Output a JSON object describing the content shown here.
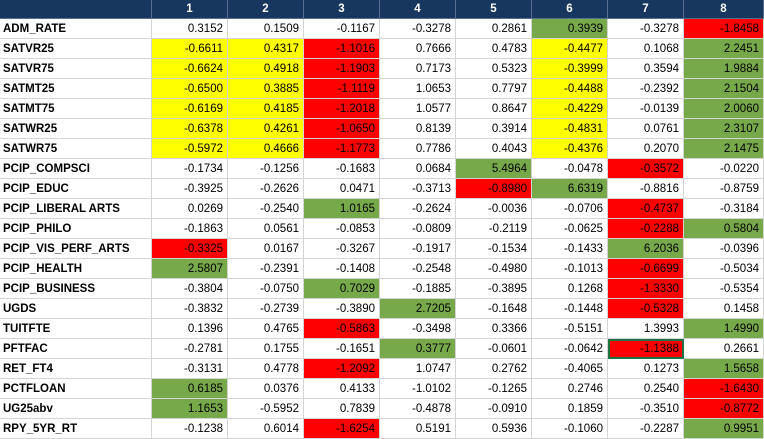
{
  "columns": [
    "",
    "1",
    "2",
    "3",
    "4",
    "5",
    "6",
    "7",
    "8"
  ],
  "colors": {
    "header": "#17375e",
    "yellow": "#ffff00",
    "red": "#ff0000",
    "green": "#77a94b"
  },
  "rows": [
    {
      "label": "ADM_RATE",
      "values": [
        "0.3152",
        "0.1509",
        "-0.1167",
        "-0.3278",
        "0.2861",
        "0.3939",
        "-0.3278",
        "-1.8458"
      ],
      "fills": [
        "",
        "",
        "",
        "",
        "",
        "green",
        "",
        "red"
      ]
    },
    {
      "label": "SATVR25",
      "values": [
        "-0.6611",
        "0.4317",
        "-1.1016",
        "0.7666",
        "0.4783",
        "-0.4477",
        "0.1068",
        "2.2451"
      ],
      "fills": [
        "yellow",
        "yellow",
        "red",
        "",
        "",
        "yellow",
        "",
        "green"
      ]
    },
    {
      "label": "SATVR75",
      "values": [
        "-0.6624",
        "0.4918",
        "-1.1903",
        "0.7173",
        "0.5323",
        "-0.3999",
        "0.3594",
        "1.9884"
      ],
      "fills": [
        "yellow",
        "yellow",
        "red",
        "",
        "",
        "yellow",
        "",
        "green"
      ]
    },
    {
      "label": "SATMT25",
      "values": [
        "-0.6500",
        "0.3885",
        "-1.1119",
        "1.0653",
        "0.7797",
        "-0.4488",
        "-0.2392",
        "2.1504"
      ],
      "fills": [
        "yellow",
        "yellow",
        "red",
        "",
        "",
        "yellow",
        "",
        "green"
      ]
    },
    {
      "label": "SATMT75",
      "values": [
        "-0.6169",
        "0.4185",
        "-1.2018",
        "1.0577",
        "0.8647",
        "-0.4229",
        "-0.0139",
        "2.0060"
      ],
      "fills": [
        "yellow",
        "yellow",
        "red",
        "",
        "",
        "yellow",
        "",
        "green"
      ]
    },
    {
      "label": "SATWR25",
      "values": [
        "-0.6378",
        "0.4261",
        "-1.0650",
        "0.8139",
        "0.3914",
        "-0.4831",
        "0.0761",
        "2.3107"
      ],
      "fills": [
        "yellow",
        "yellow",
        "red",
        "",
        "",
        "yellow",
        "",
        "green"
      ]
    },
    {
      "label": "SATWR75",
      "values": [
        "-0.5972",
        "0.4666",
        "-1.1773",
        "0.7786",
        "0.4043",
        "-0.4376",
        "0.2070",
        "2.1475"
      ],
      "fills": [
        "yellow",
        "yellow",
        "red",
        "",
        "",
        "yellow",
        "",
        "green"
      ]
    },
    {
      "label": "PCIP_COMPSCI",
      "values": [
        "-0.1734",
        "-0.1256",
        "-0.1683",
        "0.0684",
        "5.4964",
        "-0.0478",
        "-0.3572",
        "-0.0220"
      ],
      "fills": [
        "",
        "",
        "",
        "",
        "green",
        "",
        "red",
        ""
      ]
    },
    {
      "label": "PCIP_EDUC",
      "values": [
        "-0.3925",
        "-0.2626",
        "0.0471",
        "-0.3713",
        "-0.8980",
        "6.6319",
        "-0.8816",
        "-0.8759"
      ],
      "fills": [
        "",
        "",
        "",
        "",
        "red",
        "green",
        "",
        ""
      ]
    },
    {
      "label": "PCIP_LIBERAL ARTS",
      "values": [
        "0.0269",
        "-0.2540",
        "1.0165",
        "-0.2624",
        "-0.0036",
        "-0.0706",
        "-0.4737",
        "-0.3184"
      ],
      "fills": [
        "",
        "",
        "green",
        "",
        "",
        "",
        "red",
        ""
      ]
    },
    {
      "label": "PCIP_PHILO",
      "values": [
        "-0.1863",
        "0.0561",
        "-0.0853",
        "-0.0809",
        "-0.2119",
        "-0.0625",
        "-0.2288",
        "0.5804"
      ],
      "fills": [
        "",
        "",
        "",
        "",
        "",
        "",
        "red",
        "green"
      ]
    },
    {
      "label": "PCIP_VIS_PERF_ARTS",
      "values": [
        "-0.3325",
        "0.0167",
        "-0.3267",
        "-0.1917",
        "-0.1534",
        "-0.1433",
        "6.2036",
        "-0.0396"
      ],
      "fills": [
        "red",
        "",
        "",
        "",
        "",
        "",
        "green",
        ""
      ]
    },
    {
      "label": "PCIP_HEALTH",
      "values": [
        "2.5807",
        "-0.2391",
        "-0.1408",
        "-0.2548",
        "-0.4980",
        "-0.1013",
        "-0.6699",
        "-0.5034"
      ],
      "fills": [
        "green",
        "",
        "",
        "",
        "",
        "",
        "red",
        ""
      ]
    },
    {
      "label": "PCIP_BUSINESS",
      "values": [
        "-0.3804",
        "-0.0750",
        "0.7029",
        "-0.1885",
        "-0.3895",
        "0.1268",
        "-1.3330",
        "-0.5354"
      ],
      "fills": [
        "",
        "",
        "green",
        "",
        "",
        "",
        "red",
        ""
      ]
    },
    {
      "label": "UGDS",
      "values": [
        "-0.3832",
        "-0.2739",
        "-0.3890",
        "2.7205",
        "-0.1648",
        "-0.1448",
        "-0.5328",
        "0.1458"
      ],
      "fills": [
        "",
        "",
        "",
        "green",
        "",
        "",
        "red",
        ""
      ]
    },
    {
      "label": "TUITFTE",
      "values": [
        "0.1396",
        "0.4765",
        "-0.5863",
        "-0.3498",
        "0.3366",
        "-0.5151",
        "1.3993",
        "1.4990"
      ],
      "fills": [
        "",
        "",
        "red",
        "",
        "",
        "",
        "",
        "green"
      ]
    },
    {
      "label": "PFTFAC",
      "values": [
        "-0.2781",
        "0.1755",
        "-0.1651",
        "0.3777",
        "-0.0601",
        "-0.0642",
        "-1.1388",
        "0.2661"
      ],
      "fills": [
        "",
        "",
        "",
        "green",
        "",
        "",
        "red",
        ""
      ]
    },
    {
      "label": "RET_FT4",
      "values": [
        "-0.3131",
        "0.4778",
        "-1.2092",
        "1.0747",
        "0.2762",
        "-0.4065",
        "0.1273",
        "1.5658"
      ],
      "fills": [
        "",
        "",
        "red",
        "",
        "",
        "",
        "",
        "green"
      ]
    },
    {
      "label": "PCTFLOAN",
      "values": [
        "0.6185",
        "0.0376",
        "0.4133",
        "-1.0102",
        "-0.1265",
        "0.2746",
        "0.2540",
        "-1.6430"
      ],
      "fills": [
        "green",
        "",
        "",
        "",
        "",
        "",
        "",
        "red"
      ]
    },
    {
      "label": "UG25abv",
      "values": [
        "1.1653",
        "-0.5952",
        "0.7839",
        "-0.4878",
        "-0.0910",
        "0.1859",
        "-0.3510",
        "-0.8772"
      ],
      "fills": [
        "green",
        "",
        "",
        "",
        "",
        "",
        "",
        "red"
      ]
    },
    {
      "label": "RPY_5YR_RT",
      "values": [
        "-0.1238",
        "0.6014",
        "-1.6254",
        "0.5191",
        "0.5936",
        "-0.1060",
        "-0.2287",
        "0.9951"
      ],
      "fills": [
        "",
        "",
        "red",
        "",
        "",
        "",
        "",
        "green"
      ]
    }
  ],
  "selected_cell": {
    "row": 16,
    "col": 6
  }
}
